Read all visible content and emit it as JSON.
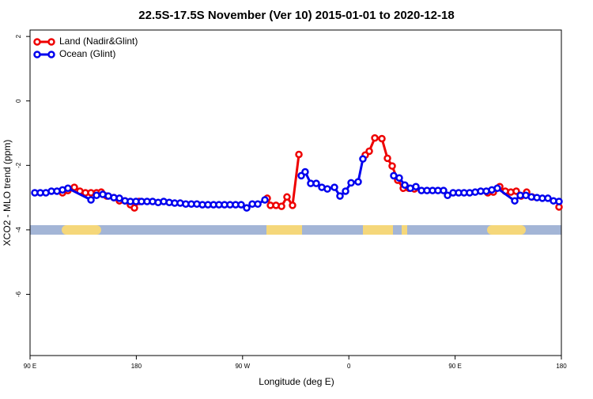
{
  "chart_data": {
    "type": "line",
    "title": "22.5S-17.5S November (Ver 10)   2015-01-01 to 2020-12-18",
    "x_label": "Longitude (deg E)",
    "y_label": "XCO2 - MLO trend (ppm)",
    "xlim": [
      90,
      540
    ],
    "ylim": [
      -7.9,
      2.2
    ],
    "xticks": [
      {
        "value": 90,
        "label": "90 E"
      },
      {
        "value": 180,
        "label": "180"
      },
      {
        "value": 270,
        "label": "90 W"
      },
      {
        "value": 360,
        "label": "0"
      },
      {
        "value": 450,
        "label": "90 E"
      },
      {
        "value": 540,
        "label": "180"
      }
    ],
    "yticks": [
      2,
      0,
      -2,
      -4,
      -6
    ],
    "legend": "top-left",
    "series": [
      {
        "name": "Land (Nadir&Glint)",
        "color": "#ee0000",
        "x": [
          117.5,
          122.1,
          127.5,
          132.2,
          136.9,
          141.6,
          146.3,
          150.3,
          155.0,
          161.0,
          165.7,
          170.4,
          175.0,
          178.4,
          182.4,
          null,
          290.9,
          293.6,
          298.3,
          303.0,
          307.6,
          312.3,
          317.7,
          null,
          373.9,
          377.3,
          382.0,
          388.0,
          392.7,
          396.7,
          401.4,
          406.1,
          410.8,
          415.5,
          null,
          477.7,
          482.4,
          487.8,
          492.5,
          497.2,
          501.8,
          505.9,
          510.6,
          515.2,
          null,
          538.0
        ],
        "values": [
          -2.85,
          -2.78,
          -2.68,
          -2.8,
          -2.85,
          -2.85,
          -2.85,
          -2.83,
          -2.95,
          -3.0,
          -3.1,
          -3.1,
          -3.22,
          -3.32,
          -3.12,
          null,
          -3.02,
          -3.24,
          -3.24,
          -3.27,
          -2.98,
          -3.24,
          -1.66,
          null,
          -1.68,
          -1.56,
          -1.15,
          -1.17,
          -1.78,
          -2.02,
          -2.46,
          -2.71,
          -2.71,
          -2.73,
          null,
          -2.85,
          -2.83,
          -2.66,
          -2.8,
          -2.83,
          -2.8,
          -2.95,
          -2.83,
          -2.98,
          null,
          -3.29
        ]
      },
      {
        "name": "Ocean (Glint)",
        "color": "#0000ee",
        "x": [
          94.0,
          98.7,
          103.4,
          108.1,
          112.8,
          117.5,
          122.1,
          141.6,
          146.3,
          151.6,
          156.3,
          161.0,
          165.7,
          170.4,
          175.0,
          179.7,
          184.4,
          189.1,
          193.8,
          198.5,
          203.2,
          207.9,
          212.5,
          217.2,
          221.9,
          226.6,
          231.3,
          236.0,
          240.7,
          245.4,
          250.0,
          254.7,
          259.4,
          264.1,
          268.8,
          273.5,
          278.2,
          282.9,
          288.9,
          null,
          319.7,
          323.0,
          327.7,
          332.4,
          337.1,
          341.8,
          347.8,
          352.5,
          357.2,
          361.9,
          367.9,
          371.9,
          null,
          398.0,
          402.7,
          407.4,
          412.1,
          416.8,
          421.5,
          426.2,
          430.9,
          435.5,
          440.2,
          443.6,
          448.3,
          453.0,
          457.6,
          462.3,
          467.0,
          471.7,
          476.4,
          481.1,
          485.8,
          500.5,
          505.2,
          509.9,
          514.6,
          519.3,
          523.9,
          528.6,
          533.3,
          538.0
        ],
        "values": [
          -2.85,
          -2.85,
          -2.85,
          -2.8,
          -2.8,
          -2.76,
          -2.71,
          -3.07,
          -2.93,
          -2.9,
          -2.95,
          -3.0,
          -3.02,
          -3.1,
          -3.12,
          -3.12,
          -3.12,
          -3.12,
          -3.12,
          -3.15,
          -3.12,
          -3.15,
          -3.17,
          -3.17,
          -3.2,
          -3.2,
          -3.2,
          -3.22,
          -3.22,
          -3.22,
          -3.22,
          -3.22,
          -3.22,
          -3.22,
          -3.22,
          -3.32,
          -3.2,
          -3.2,
          -3.07,
          null,
          -2.32,
          -2.2,
          -2.56,
          -2.56,
          -2.68,
          -2.73,
          -2.68,
          -2.95,
          -2.8,
          -2.54,
          -2.51,
          -1.8,
          null,
          -2.32,
          -2.39,
          -2.61,
          -2.71,
          -2.66,
          -2.78,
          -2.78,
          -2.78,
          -2.78,
          -2.78,
          -2.93,
          -2.85,
          -2.85,
          -2.85,
          -2.85,
          -2.83,
          -2.8,
          -2.8,
          -2.76,
          -2.71,
          -3.1,
          -2.93,
          -2.93,
          -2.98,
          -3.0,
          -3.02,
          -3.02,
          -3.1,
          -3.12
        ]
      }
    ]
  }
}
